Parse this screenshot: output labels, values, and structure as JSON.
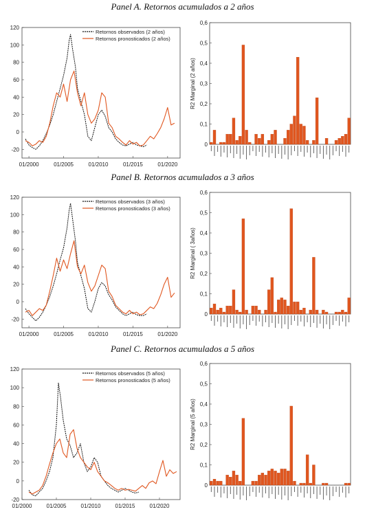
{
  "panels": [
    {
      "title": "Panel A. Retornos acumulados a 2 años"
    },
    {
      "title": "Panel B. Retornos acumulados a 3 años"
    },
    {
      "title": "Panel C. Retornos acumulados a 5 años"
    }
  ],
  "colors": {
    "observed": "#111111",
    "forecast": "#e0561f",
    "bar": "#e0561f",
    "bar_edge": "#b84315"
  },
  "chart_data": [
    {
      "type": "line",
      "panel": "A",
      "series": [
        {
          "name": "Retornos observados (2 años)",
          "style": "dashed",
          "color": "#111111",
          "x": [
            1999.5,
            2000,
            2000.5,
            2001,
            2001.5,
            2002,
            2002.5,
            2003,
            2003.5,
            2004,
            2004.5,
            2005,
            2005.5,
            2005.8,
            2006,
            2006.3,
            2006.7,
            2007,
            2007.5,
            2008,
            2008.5,
            2009,
            2009.5,
            2010,
            2010.5,
            2011,
            2011.5,
            2012,
            2012.5,
            2013,
            2013.5,
            2014,
            2014.5,
            2015,
            2015.5,
            2016,
            2016.5,
            2017
          ],
          "y": [
            -8,
            -15,
            -18,
            -20,
            -16,
            -10,
            -2,
            8,
            20,
            35,
            50,
            65,
            85,
            105,
            112,
            95,
            75,
            50,
            35,
            20,
            -5,
            -10,
            5,
            20,
            25,
            18,
            5,
            0,
            -8,
            -12,
            -15,
            -16,
            -14,
            -12,
            -15,
            -16,
            -17,
            -15
          ]
        },
        {
          "name": "Retornos pronosticados (2 años)",
          "style": "solid",
          "color": "#e0561f",
          "x": [
            1999.5,
            2000,
            2000.5,
            2001,
            2001.5,
            2002,
            2002.5,
            2003,
            2003.5,
            2004,
            2004.5,
            2005,
            2005.5,
            2006,
            2006.5,
            2007,
            2007.5,
            2008,
            2008.5,
            2009,
            2009.5,
            2010,
            2010.5,
            2011,
            2011.5,
            2012,
            2012.5,
            2013,
            2013.5,
            2014,
            2014.5,
            2015,
            2015.5,
            2016,
            2016.5,
            2017,
            2017.5,
            2018,
            2018.5,
            2019,
            2019.5,
            2020,
            2020.5,
            2021
          ],
          "y": [
            -10,
            -12,
            -16,
            -14,
            -10,
            -12,
            -5,
            10,
            30,
            45,
            40,
            55,
            35,
            60,
            70,
            45,
            30,
            45,
            20,
            10,
            15,
            25,
            45,
            40,
            10,
            5,
            -5,
            -8,
            -12,
            -15,
            -10,
            -14,
            -12,
            -16,
            -15,
            -10,
            -5,
            -8,
            -2,
            5,
            15,
            28,
            8,
            10
          ]
        }
      ],
      "xlim": [
        1999,
        2021.8
      ],
      "ylim": [
        -30,
        120
      ],
      "yticks": [
        -20,
        0,
        20,
        40,
        60,
        80,
        100,
        120
      ],
      "xticks": [
        2000,
        2005,
        2010,
        2015,
        2020
      ],
      "xtick_labels": [
        "01/2000",
        "01/2005",
        "01/2010",
        "01/2015",
        "01/2020"
      ],
      "ytick_labels": [
        "-20",
        "0",
        "20",
        "40",
        "60",
        "80",
        "100",
        "120"
      ],
      "legend": "top-right"
    },
    {
      "type": "bar",
      "panel": "A",
      "ylabel": "R2 Marginal (2 años)",
      "ylim": [
        0,
        0.6
      ],
      "yticks": [
        0,
        0.1,
        0.2,
        0.3,
        0.4,
        0.5,
        0.6
      ],
      "ytick_labels": [
        "0",
        "0,1",
        "0,2",
        "0,3",
        "0,4",
        "0,5",
        "0,6"
      ],
      "values": [
        0.01,
        0.07,
        0.0,
        0.01,
        0.01,
        0.05,
        0.05,
        0.13,
        0.02,
        0.04,
        0.49,
        0.07,
        0.01,
        0.0,
        0.05,
        0.03,
        0.05,
        0.0,
        0.02,
        0.05,
        0.07,
        0.0,
        0.0,
        0.03,
        0.07,
        0.1,
        0.14,
        0.43,
        0.1,
        0.09,
        0.02,
        0.0,
        0.02,
        0.23,
        0.0,
        0.0,
        0.03,
        0.0,
        0.0,
        0.02,
        0.03,
        0.04,
        0.05,
        0.13
      ]
    },
    {
      "type": "line",
      "panel": "B",
      "series": [
        {
          "name": "Retornos observados (3 años)",
          "style": "dashed",
          "color": "#111111",
          "x": [
            1999.5,
            2000,
            2000.5,
            2001,
            2001.5,
            2002,
            2002.5,
            2003,
            2003.5,
            2004,
            2004.5,
            2005,
            2005.5,
            2005.8,
            2006,
            2006.3,
            2006.7,
            2007,
            2007.5,
            2008,
            2008.5,
            2009,
            2009.5,
            2010,
            2010.5,
            2011,
            2011.5,
            2012,
            2012.5,
            2013,
            2013.5,
            2014,
            2014.5,
            2015,
            2015.5,
            2016,
            2016.5,
            2017
          ],
          "y": [
            -8,
            -14,
            -18,
            -22,
            -18,
            -12,
            -4,
            6,
            18,
            32,
            48,
            62,
            85,
            105,
            113,
            95,
            70,
            45,
            30,
            15,
            -8,
            -12,
            0,
            15,
            22,
            18,
            8,
            2,
            -6,
            -10,
            -14,
            -16,
            -14,
            -12,
            -15,
            -16,
            -16,
            -14
          ]
        },
        {
          "name": "Retornos pronosticados (3 años)",
          "style": "solid",
          "color": "#e0561f",
          "x": [
            1999.5,
            2000,
            2000.5,
            2001,
            2001.5,
            2002,
            2002.5,
            2003,
            2003.5,
            2004,
            2004.5,
            2005,
            2005.5,
            2006,
            2006.5,
            2007,
            2007.5,
            2008,
            2008.5,
            2009,
            2009.5,
            2010,
            2010.5,
            2011,
            2011.5,
            2012,
            2012.5,
            2013,
            2013.5,
            2014,
            2014.5,
            2015,
            2015.5,
            2016,
            2016.5,
            2017,
            2017.5,
            2018,
            2018.5,
            2019,
            2019.5,
            2020,
            2020.5,
            2021
          ],
          "y": [
            -12,
            -10,
            -16,
            -12,
            -8,
            -10,
            -4,
            12,
            30,
            50,
            35,
            48,
            38,
            55,
            70,
            40,
            32,
            42,
            22,
            12,
            18,
            30,
            42,
            38,
            12,
            6,
            -4,
            -8,
            -12,
            -14,
            -10,
            -14,
            -12,
            -15,
            -14,
            -10,
            -6,
            -8,
            -2,
            8,
            20,
            28,
            5,
            10
          ]
        }
      ],
      "xlim": [
        1999,
        2021.8
      ],
      "ylim": [
        -30,
        120
      ],
      "yticks": [
        -20,
        0,
        20,
        40,
        60,
        80,
        100,
        120
      ],
      "xticks": [
        2000,
        2005,
        2010,
        2015,
        2020
      ],
      "xtick_labels": [
        "01/2000",
        "01/2005",
        "01/2010",
        "01/2015",
        "01/2020"
      ],
      "ytick_labels": [
        "-20",
        "0",
        "20",
        "40",
        "60",
        "80",
        "100",
        "120"
      ],
      "legend": "top-right"
    },
    {
      "type": "bar",
      "panel": "B",
      "ylabel": "R2 Marginal ( 3años)",
      "ylim": [
        0,
        0.6
      ],
      "yticks": [
        0,
        0.1,
        0.2,
        0.3,
        0.4,
        0.5,
        0.6
      ],
      "ytick_labels": [
        "0",
        "0,1",
        "0,2",
        "0,3",
        "0,4",
        "0,5",
        "0,6"
      ],
      "values": [
        0.03,
        0.05,
        0.02,
        0.03,
        0.01,
        0.04,
        0.04,
        0.12,
        0.02,
        0.01,
        0.47,
        0.02,
        0.0,
        0.04,
        0.04,
        0.02,
        0.0,
        0.02,
        0.12,
        0.18,
        0.01,
        0.07,
        0.08,
        0.07,
        0.04,
        0.52,
        0.06,
        0.06,
        0.02,
        0.03,
        0.0,
        0.02,
        0.28,
        0.02,
        0.0,
        0.02,
        0.01,
        0.0,
        0.0,
        0.01,
        0.01,
        0.02,
        0.01,
        0.08
      ]
    },
    {
      "type": "line",
      "panel": "C",
      "series": [
        {
          "name": "Retornos observados (5 años)",
          "style": "dashed",
          "color": "#111111",
          "x": [
            2001,
            2001.5,
            2002,
            2002.5,
            2003,
            2003.5,
            2004,
            2004.5,
            2005,
            2005.3,
            2005.6,
            2006,
            2006.5,
            2007,
            2007.5,
            2008,
            2008.5,
            2009,
            2009.5,
            2010,
            2010.5,
            2011,
            2011.5,
            2012,
            2012.5,
            2013,
            2013.5,
            2014,
            2014.5,
            2015,
            2015.5,
            2016,
            2016.5,
            2017
          ],
          "y": [
            -10,
            -15,
            -16,
            -12,
            -8,
            0,
            10,
            25,
            60,
            105,
            90,
            65,
            45,
            38,
            25,
            30,
            40,
            20,
            10,
            15,
            25,
            20,
            5,
            0,
            -5,
            -8,
            -10,
            -12,
            -10,
            -8,
            -10,
            -12,
            -13,
            -12
          ]
        },
        {
          "name": "Retornos pronosticados (5 años)",
          "style": "solid",
          "color": "#e0561f",
          "x": [
            2001,
            2001.5,
            2002,
            2002.5,
            2003,
            2003.5,
            2004,
            2004.5,
            2005,
            2005.5,
            2006,
            2006.5,
            2007,
            2007.5,
            2008,
            2008.5,
            2009,
            2009.5,
            2010,
            2010.5,
            2011,
            2011.5,
            2012,
            2012.5,
            2013,
            2013.5,
            2014,
            2014.5,
            2015,
            2015.5,
            2016,
            2016.5,
            2017,
            2017.5,
            2018,
            2018.5,
            2019,
            2019.5,
            2020,
            2020.5,
            2021,
            2021.5,
            2022,
            2022.5
          ],
          "y": [
            -12,
            -14,
            -12,
            -10,
            -5,
            5,
            18,
            30,
            40,
            45,
            30,
            25,
            50,
            55,
            35,
            25,
            20,
            15,
            12,
            20,
            10,
            5,
            0,
            -2,
            -5,
            -8,
            -10,
            -8,
            -10,
            -9,
            -10,
            -11,
            -8,
            -5,
            -8,
            -2,
            0,
            -3,
            10,
            22,
            5,
            12,
            8,
            10
          ]
        }
      ],
      "xlim": [
        2000,
        2023
      ],
      "ylim": [
        -20,
        120
      ],
      "yticks": [
        -20,
        0,
        20,
        40,
        60,
        80,
        100,
        120
      ],
      "xticks": [
        2000,
        2005,
        2010,
        2015,
        2020
      ],
      "xtick_labels": [
        "01/2000",
        "01/2005",
        "01/2010",
        "01/2015",
        "01/2020"
      ],
      "ytick_labels": [
        "-20",
        "0",
        "20",
        "40",
        "60",
        "80",
        "100",
        "120"
      ],
      "legend": "top-right"
    },
    {
      "type": "bar",
      "panel": "C",
      "ylabel": "R2 Marginal (5 años)",
      "ylim": [
        0,
        0.6
      ],
      "yticks": [
        0,
        0.1,
        0.2,
        0.3,
        0.4,
        0.5,
        0.6
      ],
      "ytick_labels": [
        "0",
        "0,1",
        "0,2",
        "0,3",
        "0,4",
        "0,5",
        "0,6"
      ],
      "values": [
        0.02,
        0.03,
        0.02,
        0.02,
        0.0,
        0.05,
        0.04,
        0.07,
        0.05,
        0.02,
        0.33,
        0.0,
        0.0,
        0.02,
        0.02,
        0.05,
        0.06,
        0.05,
        0.07,
        0.08,
        0.07,
        0.06,
        0.08,
        0.08,
        0.07,
        0.39,
        0.02,
        0.0,
        0.01,
        0.01,
        0.15,
        0.01,
        0.1,
        0.0,
        0.0,
        0.01,
        0.01,
        0.0,
        0.0,
        0.0,
        0.0,
        0.0,
        0.01,
        0.01
      ]
    }
  ]
}
